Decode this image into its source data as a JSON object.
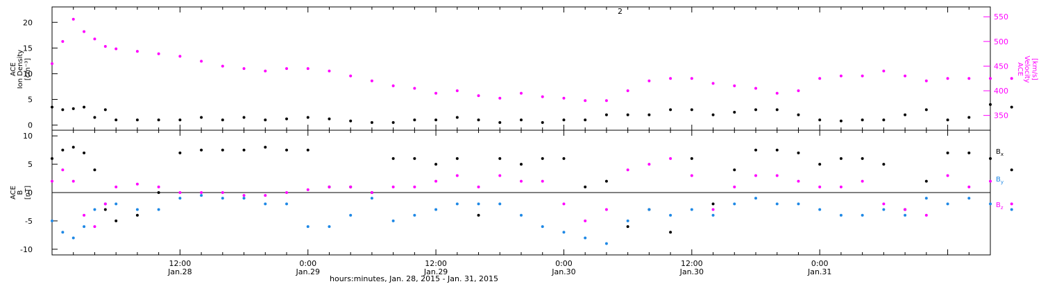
{
  "chart_data": [
    {
      "type": "scatter",
      "panel": "top",
      "y_left_label": [
        "ACE",
        "Ion Density",
        "[cm⁻³]"
      ],
      "y_right_label": [
        "ACE",
        "Velocity",
        "[km/s]"
      ],
      "ylim_left": [
        -1,
        23
      ],
      "ylim_right": [
        320,
        570
      ],
      "y_left_ticks": [
        0,
        5,
        10,
        15,
        20
      ],
      "y_right_ticks": [
        350,
        400,
        450,
        500,
        550
      ],
      "series": [
        {
          "name": "",
          "axis": "left",
          "color": "#000000",
          "x": [
            0,
            1,
            2,
            3,
            4,
            5,
            6,
            8,
            10,
            12,
            14,
            16,
            18,
            20,
            22,
            24,
            26,
            28,
            30,
            32,
            34,
            36,
            38,
            40,
            42,
            44,
            46,
            48,
            50,
            52,
            54,
            56,
            58,
            60,
            62,
            64,
            66,
            68,
            70,
            72,
            74,
            76,
            78,
            80,
            82,
            84,
            86,
            88,
            90
          ],
          "y": [
            3.5,
            3.0,
            3.2,
            3.5,
            1.5,
            3.0,
            1.0,
            1.0,
            1.0,
            1.0,
            1.5,
            1.0,
            1.5,
            1.0,
            1.2,
            1.5,
            1.2,
            0.8,
            0.5,
            0.5,
            1.0,
            1.0,
            1.5,
            1.0,
            0.5,
            1.0,
            0.5,
            1.0,
            1.0,
            2.0,
            2.0,
            2.0,
            3.0,
            3.0,
            2.0,
            2.5,
            3.0,
            3.0,
            2.0,
            1.0,
            0.8,
            1.0,
            1.0,
            2.0,
            3.0,
            1.0,
            1.5,
            4.0,
            3.5
          ]
        },
        {
          "name": "",
          "axis": "right",
          "color": "#ff00ff",
          "x": [
            0,
            1,
            2,
            3,
            4,
            5,
            6,
            8,
            10,
            12,
            14,
            16,
            18,
            20,
            22,
            24,
            26,
            28,
            30,
            32,
            34,
            36,
            38,
            40,
            42,
            44,
            46,
            48,
            50,
            52,
            54,
            56,
            58,
            60,
            62,
            64,
            66,
            68,
            70,
            72,
            74,
            76,
            78,
            80,
            82,
            84,
            86,
            88,
            90
          ],
          "y": [
            455,
            500,
            545,
            520,
            505,
            490,
            485,
            480,
            475,
            470,
            460,
            450,
            445,
            440,
            445,
            445,
            440,
            430,
            420,
            410,
            405,
            395,
            400,
            390,
            385,
            395,
            388,
            385,
            380,
            380,
            400,
            420,
            425,
            425,
            415,
            410,
            405,
            395,
            400,
            425,
            430,
            430,
            440,
            430,
            420,
            425,
            425,
            425,
            425
          ]
        }
      ],
      "annotations": [
        "",
        ""
      ]
    },
    {
      "type": "scatter",
      "panel": "bottom",
      "y_left_label": [
        "ACE",
        "B",
        "[nT]"
      ],
      "ylim": [
        -11,
        11
      ],
      "y_ticks": [
        -10,
        -5,
        0,
        5,
        10
      ],
      "zero_line": true,
      "legend": [
        {
          "label": "B",
          "sub": "x",
          "color": "#000000"
        },
        {
          "label": "B",
          "sub": "y",
          "color": "#1e88e5"
        },
        {
          "label": "B",
          "sub": "z",
          "color": "#ff00ff"
        }
      ],
      "series": [
        {
          "name": "Bx",
          "color": "#000000",
          "x": [
            0,
            1,
            2,
            3,
            4,
            5,
            6,
            8,
            10,
            12,
            14,
            16,
            18,
            20,
            22,
            24,
            26,
            28,
            30,
            32,
            34,
            36,
            38,
            40,
            42,
            44,
            46,
            48,
            50,
            52,
            54,
            56,
            58,
            60,
            62,
            64,
            66,
            68,
            70,
            72,
            74,
            76,
            78,
            80,
            82,
            84,
            86,
            88,
            90
          ],
          "y": [
            6,
            7.5,
            8,
            7,
            4,
            -3,
            -5,
            -4,
            0,
            7,
            7.5,
            7.5,
            7.5,
            8,
            7.5,
            7.5,
            1,
            1,
            0,
            6,
            6,
            5,
            6,
            -4,
            6,
            5,
            6,
            6,
            1,
            2,
            -6,
            -3,
            -7,
            6,
            -2,
            4,
            7.5,
            7.5,
            7,
            5,
            6,
            6,
            5,
            -3,
            2,
            7,
            7,
            6,
            4
          ]
        },
        {
          "name": "By",
          "color": "#1e88e5",
          "x": [
            0,
            1,
            2,
            3,
            4,
            5,
            6,
            8,
            10,
            12,
            14,
            16,
            18,
            20,
            22,
            24,
            26,
            28,
            30,
            32,
            34,
            36,
            38,
            40,
            42,
            44,
            46,
            48,
            50,
            52,
            54,
            56,
            58,
            60,
            62,
            64,
            66,
            68,
            70,
            72,
            74,
            76,
            78,
            80,
            82,
            84,
            86,
            88,
            90
          ],
          "y": [
            -5,
            -7,
            -8,
            -6,
            -3,
            -2,
            -2,
            -3,
            -3,
            -1,
            -0.5,
            -1,
            -1,
            -2,
            -2,
            -6,
            -6,
            -4,
            -1,
            -5,
            -4,
            -3,
            -2,
            -2,
            -2,
            -4,
            -6,
            -7,
            -8,
            -9,
            -5,
            -3,
            -4,
            -3,
            -4,
            -2,
            -1,
            -2,
            -2,
            -3,
            -4,
            -4,
            -3,
            -4,
            -1,
            -2,
            -1,
            -2,
            -3
          ]
        },
        {
          "name": "Bz",
          "color": "#ff00ff",
          "x": [
            0,
            1,
            2,
            3,
            4,
            5,
            6,
            8,
            10,
            12,
            14,
            16,
            18,
            20,
            22,
            24,
            26,
            28,
            30,
            32,
            34,
            36,
            38,
            40,
            42,
            44,
            46,
            48,
            50,
            52,
            54,
            56,
            58,
            60,
            62,
            64,
            66,
            68,
            70,
            72,
            74,
            76,
            78,
            80,
            82,
            84,
            86,
            88,
            90
          ],
          "y": [
            2,
            4,
            2,
            -4,
            -6,
            -2,
            1,
            1.5,
            1,
            0,
            0,
            0,
            -0.5,
            -0.5,
            0,
            0.5,
            1,
            1,
            0,
            1,
            1,
            2,
            3,
            1,
            3,
            2,
            2,
            -2,
            -5,
            -3,
            4,
            5,
            6,
            3,
            -3,
            1,
            3,
            3,
            2,
            1,
            1,
            2,
            -2,
            -3,
            -4,
            3,
            1,
            2,
            -2
          ]
        }
      ]
    }
  ],
  "x_axis": {
    "ticks": [
      {
        "t": 12,
        "time": "12:00",
        "date": "Jan.28"
      },
      {
        "t": 24,
        "time": "0:00",
        "date": "Jan.29"
      },
      {
        "t": 36,
        "time": "12:00",
        "date": "Jan.29"
      },
      {
        "t": 48,
        "time": "0:00",
        "date": "Jan.30"
      },
      {
        "t": 60,
        "time": "12:00",
        "date": "Jan.30"
      },
      {
        "t": 72,
        "time": "0:00",
        "date": "Jan.31"
      }
    ],
    "label": "hours:minutes, Jan. 28, 2015 - Jan. 31, 2015",
    "top_annotation": "2"
  }
}
